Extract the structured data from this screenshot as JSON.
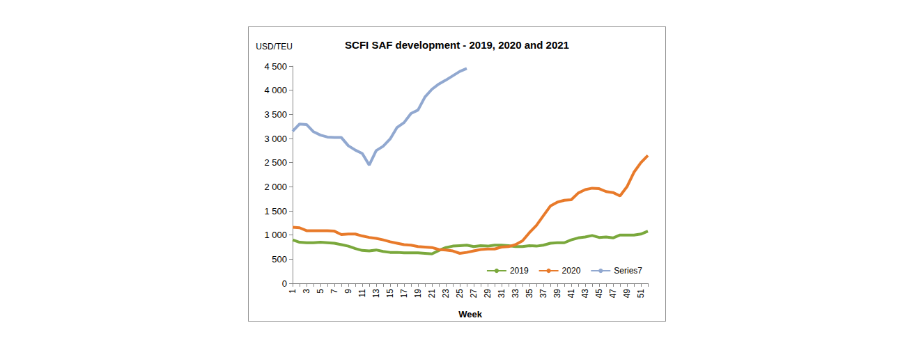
{
  "chart_data": {
    "type": "line",
    "title": "SCFI SAF development - 2019, 2020 and 2021",
    "y_label": "USD/TEU",
    "x_label": "Week",
    "categories": [
      "1",
      null,
      "3",
      null,
      "5",
      null,
      "7",
      null,
      "9",
      null,
      "11",
      null,
      "13",
      null,
      "15",
      null,
      "17",
      null,
      "19",
      null,
      "21",
      null,
      "23",
      null,
      "25",
      null,
      "27",
      null,
      "29",
      null,
      "31",
      null,
      "33",
      null,
      "35",
      null,
      "37",
      null,
      "39",
      null,
      "41",
      null,
      "43",
      null,
      "45",
      null,
      "47",
      null,
      "49",
      null,
      "51",
      null
    ],
    "series": [
      {
        "name": "2019",
        "color": "#7aa83c",
        "values": [
          900,
          850,
          840,
          840,
          850,
          840,
          830,
          800,
          770,
          720,
          680,
          670,
          690,
          660,
          640,
          640,
          630,
          630,
          630,
          620,
          610,
          680,
          740,
          770,
          780,
          790,
          760,
          780,
          770,
          790,
          790,
          780,
          760,
          760,
          780,
          770,
          790,
          830,
          840,
          840,
          900,
          940,
          960,
          990,
          950,
          960,
          940,
          1000,
          1000,
          1000,
          1020,
          1080
        ]
      },
      {
        "name": "2020",
        "color": "#e87a2a",
        "values": [
          1160,
          1150,
          1090,
          1090,
          1090,
          1090,
          1080,
          1010,
          1020,
          1020,
          980,
          950,
          930,
          900,
          860,
          830,
          800,
          790,
          760,
          750,
          740,
          700,
          690,
          670,
          620,
          640,
          670,
          700,
          710,
          710,
          750,
          760,
          800,
          880,
          1050,
          1200,
          1400,
          1600,
          1680,
          1720,
          1730,
          1870,
          1940,
          1970,
          1960,
          1900,
          1880,
          1810,
          2000,
          2300,
          2500,
          2650
        ]
      },
      {
        "name": "Series7",
        "color": "#91a8d0",
        "values": [
          3150,
          3300,
          3290,
          3140,
          3070,
          3030,
          3020,
          3020,
          2850,
          2760,
          2690,
          2450,
          2750,
          2840,
          2990,
          3230,
          3330,
          3520,
          3590,
          3860,
          4020,
          4130,
          4210,
          4300,
          4390,
          4450,
          null,
          null,
          null,
          null,
          null,
          null,
          null,
          null,
          null,
          null,
          null,
          null,
          null,
          null,
          null,
          null,
          null,
          null,
          null,
          null,
          null,
          null,
          null,
          null,
          null,
          null
        ]
      }
    ],
    "ylim": [
      0,
      4500
    ],
    "yticks": [
      0,
      500,
      {
        "value": 1000,
        "label": "1 000"
      },
      {
        "value": 1500,
        "label": "1 500"
      },
      {
        "value": 2000,
        "label": "2 000"
      },
      {
        "value": 2500,
        "label": "2 500"
      },
      {
        "value": 3000,
        "label": "3 000"
      },
      {
        "value": 3500,
        "label": "3 500"
      },
      {
        "value": 4000,
        "label": "4 000"
      },
      {
        "value": 4500,
        "label": "4 500"
      }
    ],
    "grid": false,
    "legend": "bottom-right"
  }
}
